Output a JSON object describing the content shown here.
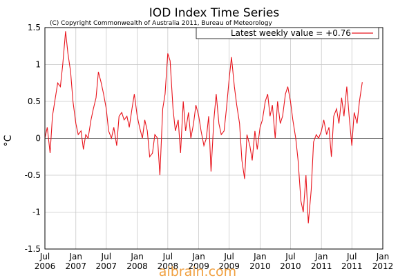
{
  "chart_data": {
    "type": "line",
    "title": "IOD Index Time Series",
    "subtitle": "(C) Copyright Commonwealth of Australia 2011, Bureau of Meteorology",
    "ylabel": "°C",
    "xlabel": "",
    "ylim": [
      -1.5,
      1.5
    ],
    "xlim": [
      "2006-07-01",
      "2012-01-01"
    ],
    "yticks": [
      "1.5",
      "1",
      "0.5",
      "0",
      "-0.5",
      "-1",
      "-1.5"
    ],
    "xticks": [
      {
        "month": "Jul",
        "year": "2006",
        "date": "2006-07-01"
      },
      {
        "month": "Jan",
        "year": "2007",
        "date": "2007-01-01"
      },
      {
        "month": "Jul",
        "year": "2007",
        "date": "2007-07-01"
      },
      {
        "month": "Jan",
        "year": "2008",
        "date": "2008-01-01"
      },
      {
        "month": "Jul",
        "year": "2008",
        "date": "2008-07-01"
      },
      {
        "month": "Jan",
        "year": "2009",
        "date": "2009-01-01"
      },
      {
        "month": "Jul",
        "year": "2009",
        "date": "2009-07-01"
      },
      {
        "month": "Jan",
        "year": "2010",
        "date": "2010-01-01"
      },
      {
        "month": "Jul",
        "year": "2010",
        "date": "2010-07-01"
      },
      {
        "month": "Jan",
        "year": "2011",
        "date": "2011-01-01"
      },
      {
        "month": "Jul",
        "year": "2011",
        "date": "2011-07-01"
      },
      {
        "month": "Jan",
        "year": "2012",
        "date": "2012-01-01"
      }
    ],
    "grid": true,
    "legend_position": "top-right",
    "series": [
      {
        "name": "Latest weekly value = +0.76",
        "color": "#e8141c",
        "x": [
          "2006-07-01",
          "2006-07-15",
          "2006-08-01",
          "2006-08-15",
          "2006-09-01",
          "2006-09-15",
          "2006-10-01",
          "2006-10-15",
          "2006-11-01",
          "2006-11-15",
          "2006-12-01",
          "2006-12-15",
          "2007-01-01",
          "2007-01-15",
          "2007-02-01",
          "2007-02-15",
          "2007-03-01",
          "2007-03-15",
          "2007-04-01",
          "2007-04-15",
          "2007-05-01",
          "2007-05-15",
          "2007-06-01",
          "2007-06-15",
          "2007-07-01",
          "2007-07-15",
          "2007-08-01",
          "2007-08-15",
          "2007-09-01",
          "2007-09-15",
          "2007-10-01",
          "2007-10-15",
          "2007-11-01",
          "2007-11-15",
          "2007-12-01",
          "2007-12-15",
          "2008-01-01",
          "2008-01-15",
          "2008-02-01",
          "2008-02-15",
          "2008-03-01",
          "2008-03-15",
          "2008-04-01",
          "2008-04-15",
          "2008-05-01",
          "2008-05-15",
          "2008-06-01",
          "2008-06-15",
          "2008-07-01",
          "2008-07-15",
          "2008-08-01",
          "2008-08-15",
          "2008-09-01",
          "2008-09-15",
          "2008-10-01",
          "2008-10-15",
          "2008-11-01",
          "2008-11-15",
          "2008-12-01",
          "2008-12-15",
          "2009-01-01",
          "2009-01-15",
          "2009-02-01",
          "2009-02-15",
          "2009-03-01",
          "2009-03-15",
          "2009-04-01",
          "2009-04-15",
          "2009-05-01",
          "2009-05-15",
          "2009-06-01",
          "2009-06-15",
          "2009-07-01",
          "2009-07-15",
          "2009-08-01",
          "2009-08-15",
          "2009-09-01",
          "2009-09-15",
          "2009-10-01",
          "2009-10-15",
          "2009-11-01",
          "2009-11-15",
          "2009-12-01",
          "2009-12-15",
          "2010-01-01",
          "2010-01-15",
          "2010-02-01",
          "2010-02-15",
          "2010-03-01",
          "2010-03-15",
          "2010-04-01",
          "2010-04-15",
          "2010-05-01",
          "2010-05-15",
          "2010-06-01",
          "2010-06-15",
          "2010-07-01",
          "2010-07-15",
          "2010-08-01",
          "2010-08-15",
          "2010-09-01",
          "2010-09-15",
          "2010-10-01",
          "2010-10-15",
          "2010-11-01",
          "2010-11-15",
          "2010-12-01",
          "2010-12-15",
          "2011-01-01",
          "2011-01-15",
          "2011-02-01",
          "2011-02-15",
          "2011-03-01",
          "2011-03-15",
          "2011-04-01",
          "2011-04-15",
          "2011-05-01",
          "2011-05-15",
          "2011-06-01",
          "2011-06-15",
          "2011-07-01",
          "2011-07-15",
          "2011-08-01",
          "2011-08-15",
          "2011-09-01"
        ],
        "values": [
          0.0,
          0.15,
          -0.2,
          0.3,
          0.55,
          0.75,
          0.7,
          1.0,
          1.45,
          1.15,
          0.9,
          0.5,
          0.2,
          0.05,
          0.1,
          -0.15,
          0.05,
          0.0,
          0.25,
          0.4,
          0.55,
          0.9,
          0.75,
          0.6,
          0.4,
          0.1,
          0.0,
          0.15,
          -0.1,
          0.3,
          0.35,
          0.25,
          0.3,
          0.15,
          0.4,
          0.6,
          0.3,
          0.15,
          0.0,
          0.25,
          0.1,
          -0.25,
          -0.2,
          0.05,
          0.0,
          -0.5,
          0.4,
          0.6,
          1.15,
          1.05,
          0.4,
          0.1,
          0.25,
          -0.2,
          0.5,
          0.1,
          0.35,
          0.0,
          0.2,
          0.45,
          0.3,
          0.1,
          -0.1,
          0.0,
          0.3,
          -0.45,
          0.25,
          0.6,
          0.2,
          0.05,
          0.1,
          0.4,
          0.8,
          1.1,
          0.7,
          0.45,
          0.2,
          -0.3,
          -0.55,
          0.05,
          -0.1,
          -0.3,
          0.1,
          -0.15,
          0.15,
          0.25,
          0.5,
          0.6,
          0.3,
          0.45,
          0.0,
          0.5,
          0.2,
          0.3,
          0.6,
          0.7,
          0.5,
          0.25,
          0.0,
          -0.3,
          -0.85,
          -1.0,
          -0.5,
          -1.15,
          -0.7,
          -0.05,
          0.05,
          0.0,
          0.1,
          0.25,
          0.05,
          0.15,
          -0.25,
          0.3,
          0.4,
          0.2,
          0.55,
          0.3,
          0.7,
          0.3,
          -0.1,
          0.35,
          0.2,
          0.5,
          0.76
        ]
      }
    ]
  },
  "watermark": "aibrain.com"
}
